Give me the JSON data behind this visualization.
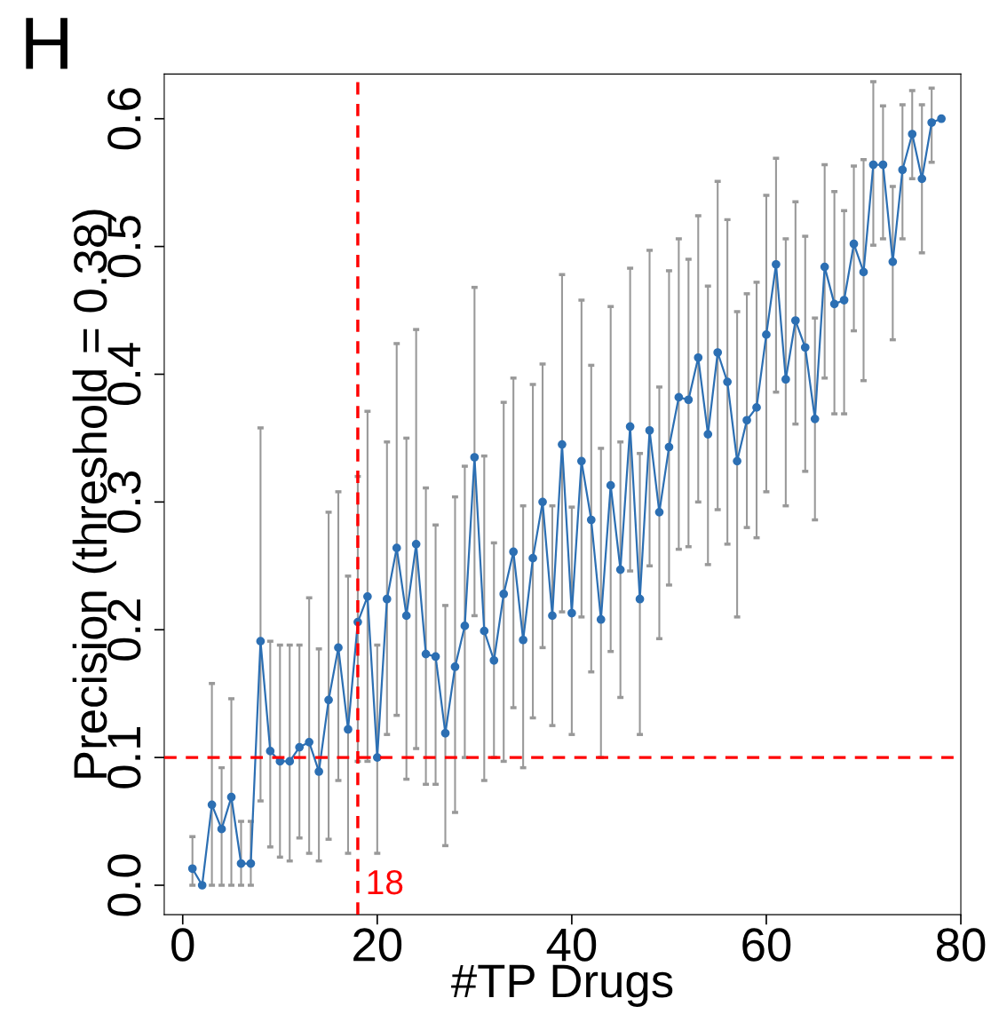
{
  "chart_data": {
    "type": "line",
    "title": "H",
    "xlabel": "#TP Drugs",
    "ylabel": "Precision (threshold = 0.38)",
    "x": [
      1,
      2,
      3,
      4,
      5,
      6,
      7,
      8,
      9,
      10,
      11,
      12,
      13,
      14,
      15,
      16,
      17,
      18,
      19,
      20,
      21,
      22,
      23,
      24,
      25,
      26,
      27,
      28,
      29,
      30,
      31,
      32,
      33,
      34,
      35,
      36,
      37,
      38,
      39,
      40,
      41,
      42,
      43,
      44,
      45,
      46,
      47,
      48,
      49,
      50,
      51,
      52,
      53,
      54,
      55,
      56,
      57,
      58,
      59,
      60,
      61,
      62,
      63,
      64,
      65,
      66,
      67,
      68,
      69,
      70,
      71,
      72,
      73,
      74,
      75,
      76,
      77,
      78
    ],
    "series": [
      {
        "color": "#2c6fb3",
        "values": [
          0.013,
          0.0,
          0.063,
          0.044,
          0.069,
          0.017,
          0.017,
          0.191,
          0.105,
          0.097,
          0.097,
          0.108,
          0.112,
          0.089,
          0.145,
          0.186,
          0.122,
          0.206,
          0.226,
          0.1,
          0.224,
          0.264,
          0.211,
          0.267,
          0.181,
          0.179,
          0.119,
          0.171,
          0.203,
          0.335,
          0.199,
          0.176,
          0.228,
          0.261,
          0.192,
          0.256,
          0.3,
          0.211,
          0.345,
          0.213,
          0.332,
          0.286,
          0.208,
          0.313,
          0.247,
          0.359,
          0.224,
          0.356,
          0.292,
          0.343,
          0.382,
          0.38,
          0.413,
          0.353,
          0.417,
          0.394,
          0.332,
          0.364,
          0.374,
          0.431,
          0.486,
          0.396,
          0.442,
          0.421,
          0.365,
          0.484,
          0.455,
          0.458,
          0.502,
          0.48,
          0.564,
          0.564,
          0.488,
          0.56,
          0.588,
          0.553,
          0.597,
          0.6
        ],
        "errors": [
          [
            0.0,
            0.038
          ],
          null,
          [
            0.0,
            0.158
          ],
          [
            0.0,
            0.092
          ],
          [
            0.0,
            0.146
          ],
          [
            0.0,
            0.05
          ],
          [
            0.0,
            0.05
          ],
          [
            0.066,
            0.358
          ],
          [
            0.03,
            0.191
          ],
          [
            0.022,
            0.188
          ],
          [
            0.019,
            0.188
          ],
          [
            0.037,
            0.188
          ],
          [
            0.025,
            0.225
          ],
          [
            0.019,
            0.185
          ],
          [
            0.036,
            0.292
          ],
          [
            0.082,
            0.308
          ],
          [
            0.025,
            0.242
          ],
          [
            0.097,
            0.32
          ],
          [
            0.097,
            0.371
          ],
          [
            0.025,
            0.188
          ],
          [
            0.118,
            0.347
          ],
          [
            0.133,
            0.424
          ],
          [
            0.083,
            0.35
          ],
          [
            0.107,
            0.435
          ],
          [
            0.079,
            0.311
          ],
          [
            0.079,
            0.282
          ],
          [
            0.031,
            0.219
          ],
          [
            0.057,
            0.304
          ],
          [
            0.1,
            0.328
          ],
          [
            0.211,
            0.468
          ],
          [
            0.082,
            0.336
          ],
          [
            0.1,
            0.268
          ],
          [
            0.097,
            0.378
          ],
          [
            0.139,
            0.397
          ],
          [
            0.092,
            0.297
          ],
          [
            0.131,
            0.392
          ],
          [
            0.186,
            0.408
          ],
          [
            0.125,
            0.297
          ],
          [
            0.214,
            0.478
          ],
          [
            0.118,
            0.296
          ],
          [
            0.21,
            0.458
          ],
          [
            0.167,
            0.407
          ],
          [
            0.1,
            0.342
          ],
          [
            0.183,
            0.453
          ],
          [
            0.147,
            0.347
          ],
          [
            0.246,
            0.483
          ],
          [
            0.118,
            0.338
          ],
          [
            0.25,
            0.497
          ],
          [
            0.193,
            0.39
          ],
          [
            0.235,
            0.481
          ],
          [
            0.263,
            0.506
          ],
          [
            0.265,
            0.49
          ],
          [
            0.3,
            0.524
          ],
          [
            0.251,
            0.469
          ],
          [
            0.294,
            0.551
          ],
          [
            0.267,
            0.521
          ],
          [
            0.21,
            0.449
          ],
          [
            0.28,
            0.463
          ],
          [
            0.272,
            0.472
          ],
          [
            0.308,
            0.54
          ],
          [
            0.386,
            0.569
          ],
          [
            0.297,
            0.506
          ],
          [
            0.361,
            0.535
          ],
          [
            0.324,
            0.508
          ],
          [
            0.286,
            0.444
          ],
          [
            0.397,
            0.564
          ],
          [
            0.369,
            0.543
          ],
          [
            0.369,
            0.528
          ],
          [
            0.434,
            0.563
          ],
          [
            0.395,
            0.568
          ],
          [
            0.501,
            0.629
          ],
          [
            0.506,
            0.61
          ],
          [
            0.427,
            0.547
          ],
          [
            0.506,
            0.611
          ],
          [
            0.553,
            0.622
          ],
          [
            0.495,
            0.611
          ],
          [
            0.566,
            0.624
          ],
          null
        ]
      }
    ],
    "xlim": [
      -1.9,
      80
    ],
    "xticks": [
      0,
      20,
      40,
      60,
      80
    ],
    "ylim": [
      -0.023,
      0.635
    ],
    "yticks": [
      {
        "value": 0,
        "label": "0.0"
      },
      {
        "value": 0.1,
        "label": "0.1"
      },
      {
        "value": 0.2,
        "label": "0.2"
      },
      {
        "value": 0.3,
        "label": "0.3"
      },
      {
        "value": 0.4,
        "label": "0.4"
      },
      {
        "value": 0.5,
        "label": "0.5"
      },
      {
        "value": 0.6,
        "label": "0.6"
      }
    ],
    "ref_lines": [
      {
        "axis": "x",
        "value": 18,
        "label": "18",
        "color": "#ff0000",
        "line_style": "dashed"
      },
      {
        "axis": "y",
        "value": 0.1,
        "color": "#ff0000",
        "line_style": "dashed"
      }
    ],
    "marker": "circle",
    "line_style": "solid",
    "grid": false,
    "legend": false
  }
}
